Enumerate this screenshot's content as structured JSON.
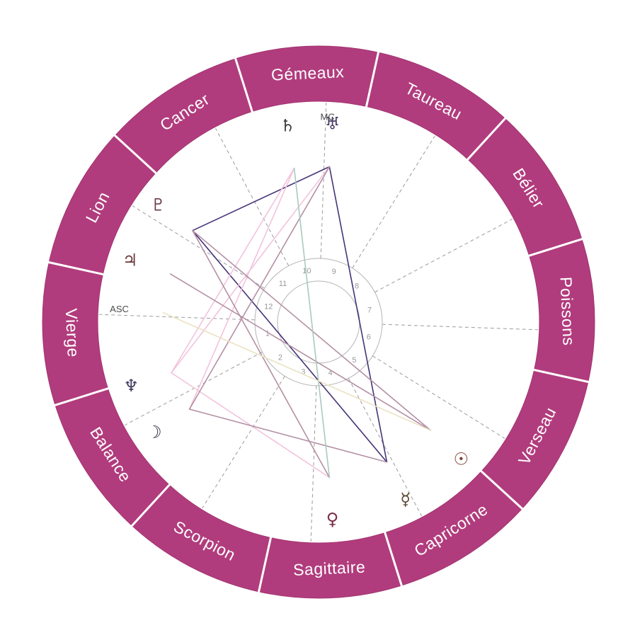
{
  "chart_data": {
    "type": "natal-wheel",
    "signs": [
      {
        "name": "Bélier",
        "angle": 32.5
      },
      {
        "name": "Taureau",
        "angle": 62.5
      },
      {
        "name": "Gémeaux",
        "angle": 92.5
      },
      {
        "name": "Cancer",
        "angle": 122.5
      },
      {
        "name": "Lion",
        "angle": 152.5
      },
      {
        "name": "Vierge",
        "angle": 182.5
      },
      {
        "name": "Balance",
        "angle": 212.5
      },
      {
        "name": "Scorpion",
        "angle": 242.5
      },
      {
        "name": "Sagittaire",
        "angle": 272.5
      },
      {
        "name": "Capricorne",
        "angle": 302.5
      },
      {
        "name": "Verseau",
        "angle": 332.5
      },
      {
        "name": "Poissons",
        "angle": 2.5
      }
    ],
    "houses": [
      {
        "number": "1",
        "angle": 193
      },
      {
        "number": "2",
        "angle": 223
      },
      {
        "number": "3",
        "angle": 253
      },
      {
        "number": "4",
        "angle": 283
      },
      {
        "number": "5",
        "angle": 313
      },
      {
        "number": "6",
        "angle": 343
      },
      {
        "number": "7",
        "angle": 13
      },
      {
        "number": "8",
        "angle": 43
      },
      {
        "number": "9",
        "angle": 73
      },
      {
        "number": "10",
        "angle": 103
      },
      {
        "number": "11",
        "angle": 133
      },
      {
        "number": "12",
        "angle": 163
      }
    ],
    "house_cusp_start_angle": 178,
    "sign_boundary_offset": 17.5,
    "planets": [
      {
        "name": "Saturne",
        "icon": "saturn-icon",
        "glyph": "♄",
        "angle": 99,
        "color": "#3d3a3a"
      },
      {
        "name": "Uranus",
        "icon": "uranus-icon",
        "glyph": "♅",
        "angle": 86,
        "color": "#4a3b66"
      },
      {
        "name": "Pluton",
        "icon": "pluto-icon",
        "glyph": "♇",
        "angle": 144,
        "color": "#6e3a50"
      },
      {
        "name": "Jupiter",
        "icon": "jupiter-icon",
        "glyph": "♃",
        "angle": 162,
        "color": "#6b3a3a"
      },
      {
        "name": "Neptune",
        "icon": "neptune-icon",
        "glyph": "♆",
        "angle": 199,
        "color": "#3f3a5e"
      },
      {
        "name": "Lune",
        "icon": "moon-icon",
        "glyph": "☽",
        "angle": 214,
        "color": "#2a2840"
      },
      {
        "name": "Vénus",
        "icon": "venus-icon",
        "glyph": "♀",
        "angle": 274,
        "color": "#7a2f4a"
      },
      {
        "name": "Mercure",
        "icon": "mercury-icon",
        "glyph": "☿",
        "angle": 296,
        "color": "#5a4632"
      },
      {
        "name": "Soleil",
        "icon": "sun-icon",
        "glyph": "☉",
        "angle": 316,
        "color": "#7a3b2e"
      }
    ],
    "points": [
      {
        "label": "ASC",
        "angle": 176.5
      },
      {
        "label": "MC",
        "angle": 87.5
      }
    ],
    "aspects": [
      {
        "from": "Uranus",
        "to": "Pluton",
        "color": "#463377"
      },
      {
        "from": "Uranus",
        "to": "Mercure",
        "color": "#463377"
      },
      {
        "from": "Pluton",
        "to": "Mercure",
        "color": "#463377"
      },
      {
        "from": "Saturne",
        "to": "Neptune",
        "color": "#f2c3dc"
      },
      {
        "from": "Saturne",
        "to": "Lune",
        "color": "#f2c3dc"
      },
      {
        "from": "Uranus",
        "to": "Neptune",
        "color": "#f2c3dc"
      },
      {
        "from": "Neptune",
        "to": "Vénus",
        "color": "#f2c3dc"
      },
      {
        "from": "Pluton",
        "to": "Soleil",
        "color": "#b490a4"
      },
      {
        "from": "Pluton",
        "to": "Vénus",
        "color": "#b490a4"
      },
      {
        "from": "Lune",
        "to": "Mercure",
        "color": "#b490a4"
      },
      {
        "from": "Lune",
        "to": "Uranus",
        "color": "#b490a4"
      },
      {
        "from": "Jupiter",
        "to": "Soleil",
        "color": "#b490a4"
      },
      {
        "from": "Saturne",
        "to": "Vénus",
        "color": "#a9cabc"
      },
      {
        "from": "ASC",
        "to": "Soleil",
        "color": "#ebe2c3"
      }
    ],
    "colors": {
      "ring": "#b13c7d",
      "ring_edge": "#a23470",
      "ring_text": "#ffffff",
      "sign_divider": "#ffffff",
      "dashed_lines": "#9b9b9b",
      "inner_circles": "#b5b5b5",
      "house_numbers": "#999999",
      "point_labels": "#4a4a4a",
      "background": "#ffffff"
    }
  }
}
